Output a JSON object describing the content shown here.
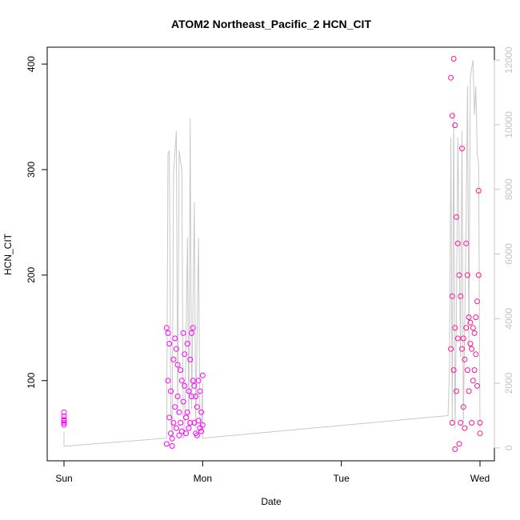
{
  "chart_data": {
    "type": "scatter",
    "title": "ATOM2 Northeast_Pacific_2 HCN_CIT",
    "xlabel": "Date",
    "ylabel": "HCN_CIT",
    "x_ticks": [
      "Sun",
      "Mon",
      "Tue",
      "Wed"
    ],
    "xlim": [
      0,
      3.07
    ],
    "ylim": [
      24,
      416
    ],
    "y_ticks": [
      100,
      200,
      300,
      400
    ],
    "y2lim": [
      -400,
      12400
    ],
    "y2_ticks": [
      0,
      2000,
      4000,
      6000,
      8000,
      10000,
      12000
    ],
    "grid": false,
    "legend": "none",
    "colors": {
      "scatter_early": "#ff00ff",
      "scatter_late": "#ff1493",
      "line": "#c8c8c8",
      "right_axis": "#c4c4c4"
    },
    "series": [
      {
        "kind": "points",
        "axis": "left",
        "color": "#ff00ff",
        "x": [
          0.0,
          0.0,
          0.0,
          0.0,
          0.0,
          0.0,
          0.74,
          0.74,
          0.75,
          0.75,
          0.76,
          0.76,
          0.77,
          0.77,
          0.78,
          0.78,
          0.79,
          0.79,
          0.8,
          0.8,
          0.81,
          0.81,
          0.82,
          0.82,
          0.83,
          0.83,
          0.84,
          0.84,
          0.85,
          0.85,
          0.86,
          0.86,
          0.87,
          0.87,
          0.88,
          0.88,
          0.89,
          0.89,
          0.9,
          0.9,
          0.91,
          0.91,
          0.92,
          0.92,
          0.93,
          0.93,
          0.94,
          0.94,
          0.95,
          0.95,
          0.96,
          0.96,
          0.97,
          0.97,
          0.98,
          0.98,
          0.99,
          0.99,
          1.0,
          1.0
        ],
        "y": [
          70,
          66,
          63,
          60,
          58,
          62,
          150,
          40,
          145,
          100,
          135,
          65,
          90,
          50,
          45,
          38,
          120,
          60,
          140,
          75,
          130,
          55,
          115,
          85,
          70,
          48,
          110,
          60,
          100,
          52,
          145,
          80,
          125,
          95,
          65,
          50,
          135,
          70,
          90,
          55,
          120,
          60,
          145,
          85,
          150,
          100,
          95,
          60,
          85,
          50,
          75,
          48,
          100,
          62,
          90,
          55,
          70,
          52,
          105,
          58
        ]
      },
      {
        "kind": "points",
        "axis": "left",
        "color": "#ff1493",
        "x": [
          2.79,
          2.79,
          2.8,
          2.8,
          2.8,
          2.81,
          2.81,
          2.82,
          2.82,
          2.82,
          2.83,
          2.83,
          2.84,
          2.84,
          2.85,
          2.85,
          2.86,
          2.86,
          2.87,
          2.87,
          2.88,
          2.88,
          2.89,
          2.89,
          2.9,
          2.9,
          2.91,
          2.91,
          2.92,
          2.92,
          2.93,
          2.93,
          2.94,
          2.94,
          2.95,
          2.95,
          2.96,
          2.96,
          2.97,
          2.97,
          2.98,
          2.98,
          2.99,
          2.99,
          3.0,
          3.0
        ],
        "y": [
          387,
          130,
          351,
          180,
          60,
          405,
          110,
          342,
          150,
          35,
          255,
          90,
          230,
          140,
          200,
          40,
          180,
          60,
          320,
          130,
          140,
          75,
          120,
          55,
          230,
          150,
          200,
          110,
          160,
          90,
          155,
          135,
          130,
          60,
          150,
          100,
          145,
          110,
          160,
          125,
          175,
          95,
          280,
          200,
          60,
          50
        ]
      },
      {
        "kind": "line",
        "axis": "right",
        "color": "#c8c8c8",
        "x": [
          0.0,
          0.0,
          0.74,
          0.75,
          0.76,
          0.77,
          0.78,
          0.79,
          0.81,
          0.82,
          0.83,
          0.85,
          0.86,
          0.87,
          0.89,
          0.9,
          0.91,
          0.92,
          0.94,
          0.95,
          0.97,
          0.98,
          0.99,
          1.0,
          1.0,
          2.77,
          2.78,
          2.79,
          2.8,
          2.81,
          2.82,
          2.83,
          2.84,
          2.86,
          2.87,
          2.88,
          2.9,
          2.91,
          2.92,
          2.93,
          2.95,
          2.96,
          2.97,
          2.98,
          2.99,
          3.0
        ],
        "y": [
          500,
          50,
          300,
          9100,
          9200,
          1100,
          400,
          8500,
          9800,
          1000,
          9200,
          8600,
          300,
          400,
          6500,
          600,
          10200,
          1200,
          7600,
          600,
          6500,
          900,
          500,
          2000,
          300,
          1000,
          2500,
          9600,
          800,
          10400,
          600,
          4000,
          9600,
          2800,
          9800,
          800,
          7000,
          11200,
          3100,
          11500,
          12000,
          10300,
          11200,
          9100,
          8800,
          600
        ]
      }
    ]
  }
}
